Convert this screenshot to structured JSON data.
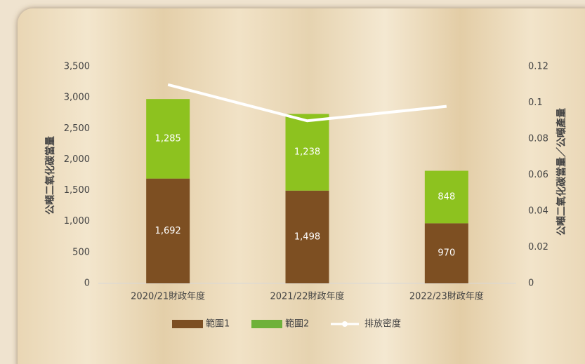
{
  "chart_data": {
    "type": "bar",
    "stacked": true,
    "categories": [
      "2020/21財政年度",
      "2021/22財政年度",
      "2022/23財政年度"
    ],
    "series": [
      {
        "name": "範圍1",
        "color": "#7d4f22",
        "values": [
          1692,
          1498,
          970
        ],
        "value_labels": [
          "1,692",
          "1,498",
          "970"
        ]
      },
      {
        "name": "範圍2",
        "color": "#8dc21f",
        "values": [
          1285,
          1238,
          848
        ],
        "value_labels": [
          "1,285",
          "1,238",
          "848"
        ]
      },
      {
        "name": "排放密度",
        "type": "line",
        "axis": "y2",
        "color": "#ffffff",
        "values": [
          0.11,
          0.09,
          0.098
        ]
      }
    ],
    "ylabel": "公噸二氧化碳當量",
    "y2label": "公噸二氧化碳當量／公噸產量",
    "ylim": [
      0,
      3500
    ],
    "yticks": [
      0,
      500,
      {
        "value": 1000,
        "label": "1,000"
      },
      {
        "value": 1500,
        "label": "1,500"
      },
      {
        "value": 2000,
        "label": "2,000"
      },
      {
        "value": 2500,
        "label": "2,500"
      },
      {
        "value": 3000,
        "label": "3,000"
      },
      {
        "value": 3500,
        "label": "3,500"
      }
    ],
    "y2lim": [
      0,
      0.12
    ],
    "y2ticks": [
      0,
      0.02,
      0.04,
      0.06,
      0.08,
      0.1,
      0.12
    ],
    "legend": "bottom"
  }
}
